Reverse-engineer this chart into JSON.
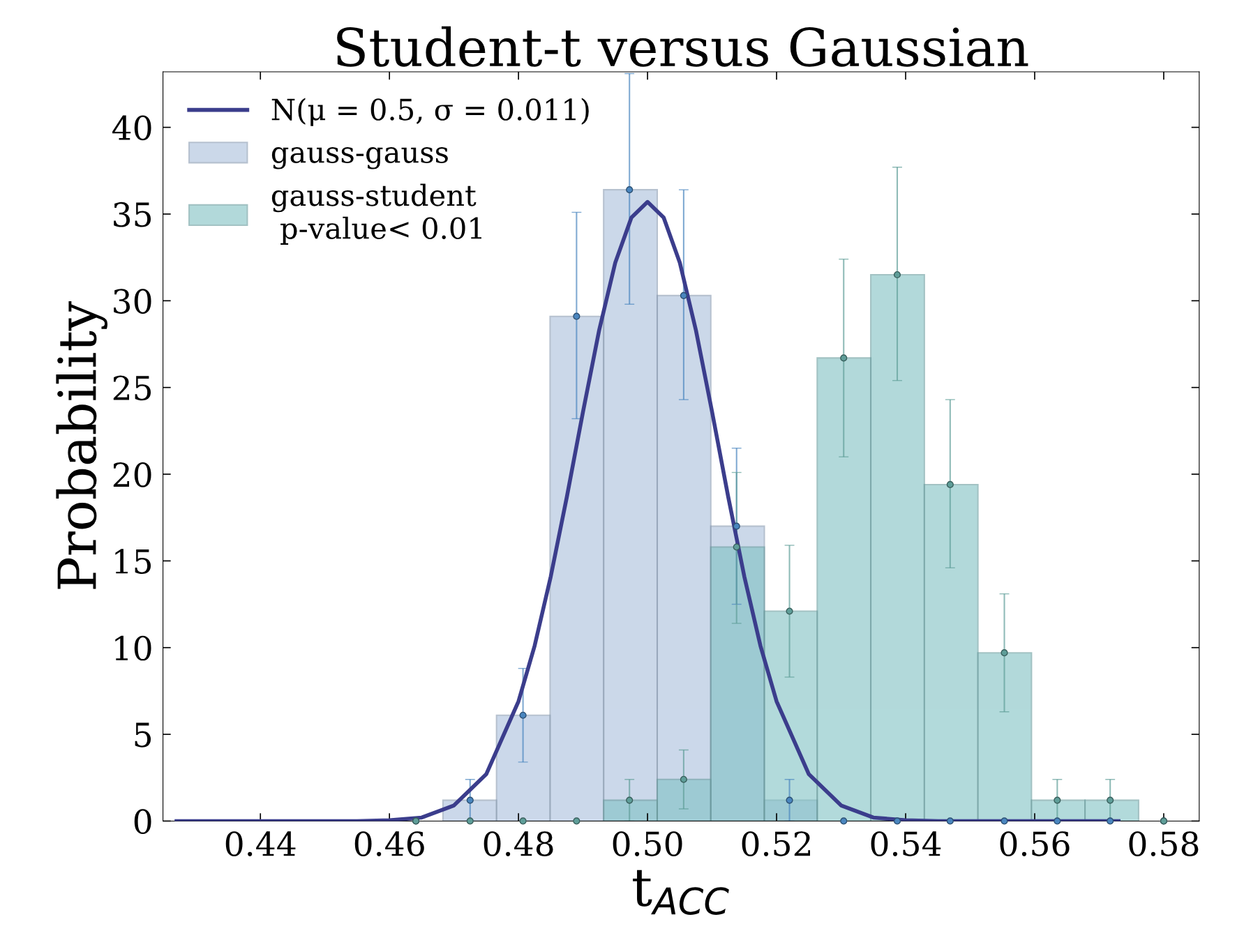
{
  "chart_data": {
    "type": "histogram",
    "title": "Student-t versus Gaussian",
    "xlabel": "t$_{ACC}$",
    "ylabel": "Probability",
    "bins": [
      0.4683,
      0.4766,
      0.4849,
      0.4932,
      0.5015,
      0.5098,
      0.5181,
      0.5263,
      0.5346,
      0.5429,
      0.5512,
      0.5595,
      0.5678,
      0.5761
    ],
    "series": [
      {
        "name": "N(μ = 0.5, σ = 0.011)",
        "type": "line",
        "color": "#3b3d8c",
        "x": [
          0.427,
          0.455,
          0.46,
          0.465,
          0.47,
          0.475,
          0.48,
          0.4825,
          0.485,
          0.4875,
          0.49,
          0.4925,
          0.495,
          0.4975,
          0.5,
          0.5025,
          0.505,
          0.5075,
          0.51,
          0.5125,
          0.515,
          0.5175,
          0.52,
          0.525,
          0.53,
          0.535,
          0.54,
          0.545,
          0.573
        ],
        "values": [
          0,
          0,
          0.05,
          0.2,
          0.9,
          2.7,
          6.9,
          10.1,
          14.1,
          18.7,
          23.6,
          28.3,
          32.2,
          34.8,
          35.7,
          34.8,
          32.2,
          28.3,
          23.6,
          18.7,
          14.1,
          10.1,
          6.9,
          2.7,
          0.9,
          0.2,
          0.05,
          0,
          0
        ]
      },
      {
        "name": "gauss-gauss",
        "color": "#a9bfdc",
        "values": [
          1.2,
          6.1,
          29.1,
          36.4,
          30.3,
          17.0,
          1.2,
          0,
          0,
          0,
          0,
          0,
          0
        ]
      },
      {
        "name": "gauss-student\n p-value< 0.01",
        "color": "#7fc1c3",
        "values": [
          0,
          0,
          0,
          1.2,
          2.4,
          15.8,
          12.1,
          26.7,
          31.5,
          19.4,
          9.7,
          1.2,
          1.2
        ]
      },
      {
        "type": "scatter",
        "color": "#4a86bf",
        "marker": "circle",
        "x": [
          0.4641,
          0.4725,
          0.4807,
          0.489,
          0.4972,
          0.5056,
          0.5138,
          0.522,
          0.5304,
          0.5387,
          0.5469,
          0.5553,
          0.5635,
          0.5717,
          0.58
        ],
        "values": [
          0,
          1.2,
          6.1,
          29.1,
          36.4,
          30.3,
          17.0,
          1.2,
          0,
          0,
          0,
          0,
          0,
          0,
          0
        ],
        "errors": [
          null,
          [
            0,
            2.4
          ],
          [
            3.4,
            8.8
          ],
          [
            23.2,
            35.1
          ],
          [
            29.8,
            43.1
          ],
          [
            24.3,
            36.4
          ],
          [
            12.5,
            21.5
          ],
          [
            0,
            2.4
          ],
          null,
          null,
          null,
          null,
          null,
          null,
          null
        ]
      },
      {
        "type": "scatter",
        "color": "#5f9e99",
        "marker": "circle",
        "x": [
          0.4641,
          0.4725,
          0.4807,
          0.489,
          0.4972,
          0.5056,
          0.5138,
          0.522,
          0.5304,
          0.5387,
          0.5469,
          0.5553,
          0.5635,
          0.5717,
          0.58
        ],
        "values": [
          0,
          0,
          0,
          0,
          1.2,
          2.4,
          15.8,
          12.1,
          26.7,
          31.5,
          19.4,
          9.7,
          1.2,
          1.2,
          0
        ],
        "errors": [
          null,
          null,
          null,
          null,
          [
            0,
            2.4
          ],
          [
            0.7,
            4.1
          ],
          [
            11.4,
            20.1
          ],
          [
            8.3,
            15.9
          ],
          [
            21.0,
            32.4
          ],
          [
            25.4,
            37.7
          ],
          [
            14.6,
            24.3
          ],
          [
            6.3,
            13.1
          ],
          [
            0,
            2.4
          ],
          [
            0,
            2.4
          ],
          null
        ]
      }
    ],
    "xlim": [
      0.4249,
      0.5855
    ],
    "ylim": [
      0,
      43.2
    ],
    "xticks": [
      {
        "value": 0.44,
        "label": "0.44"
      },
      {
        "value": 0.46,
        "label": "0.46"
      },
      {
        "value": 0.48,
        "label": "0.48"
      },
      {
        "value": 0.5,
        "label": "0.50"
      },
      {
        "value": 0.52,
        "label": "0.52"
      },
      {
        "value": 0.54,
        "label": "0.54"
      },
      {
        "value": 0.56,
        "label": "0.56"
      },
      {
        "value": 0.58,
        "label": "0.58"
      }
    ],
    "yticks": [
      0,
      5,
      10,
      15,
      20,
      25,
      30,
      35,
      40
    ],
    "grid": false,
    "legend": "top left"
  }
}
